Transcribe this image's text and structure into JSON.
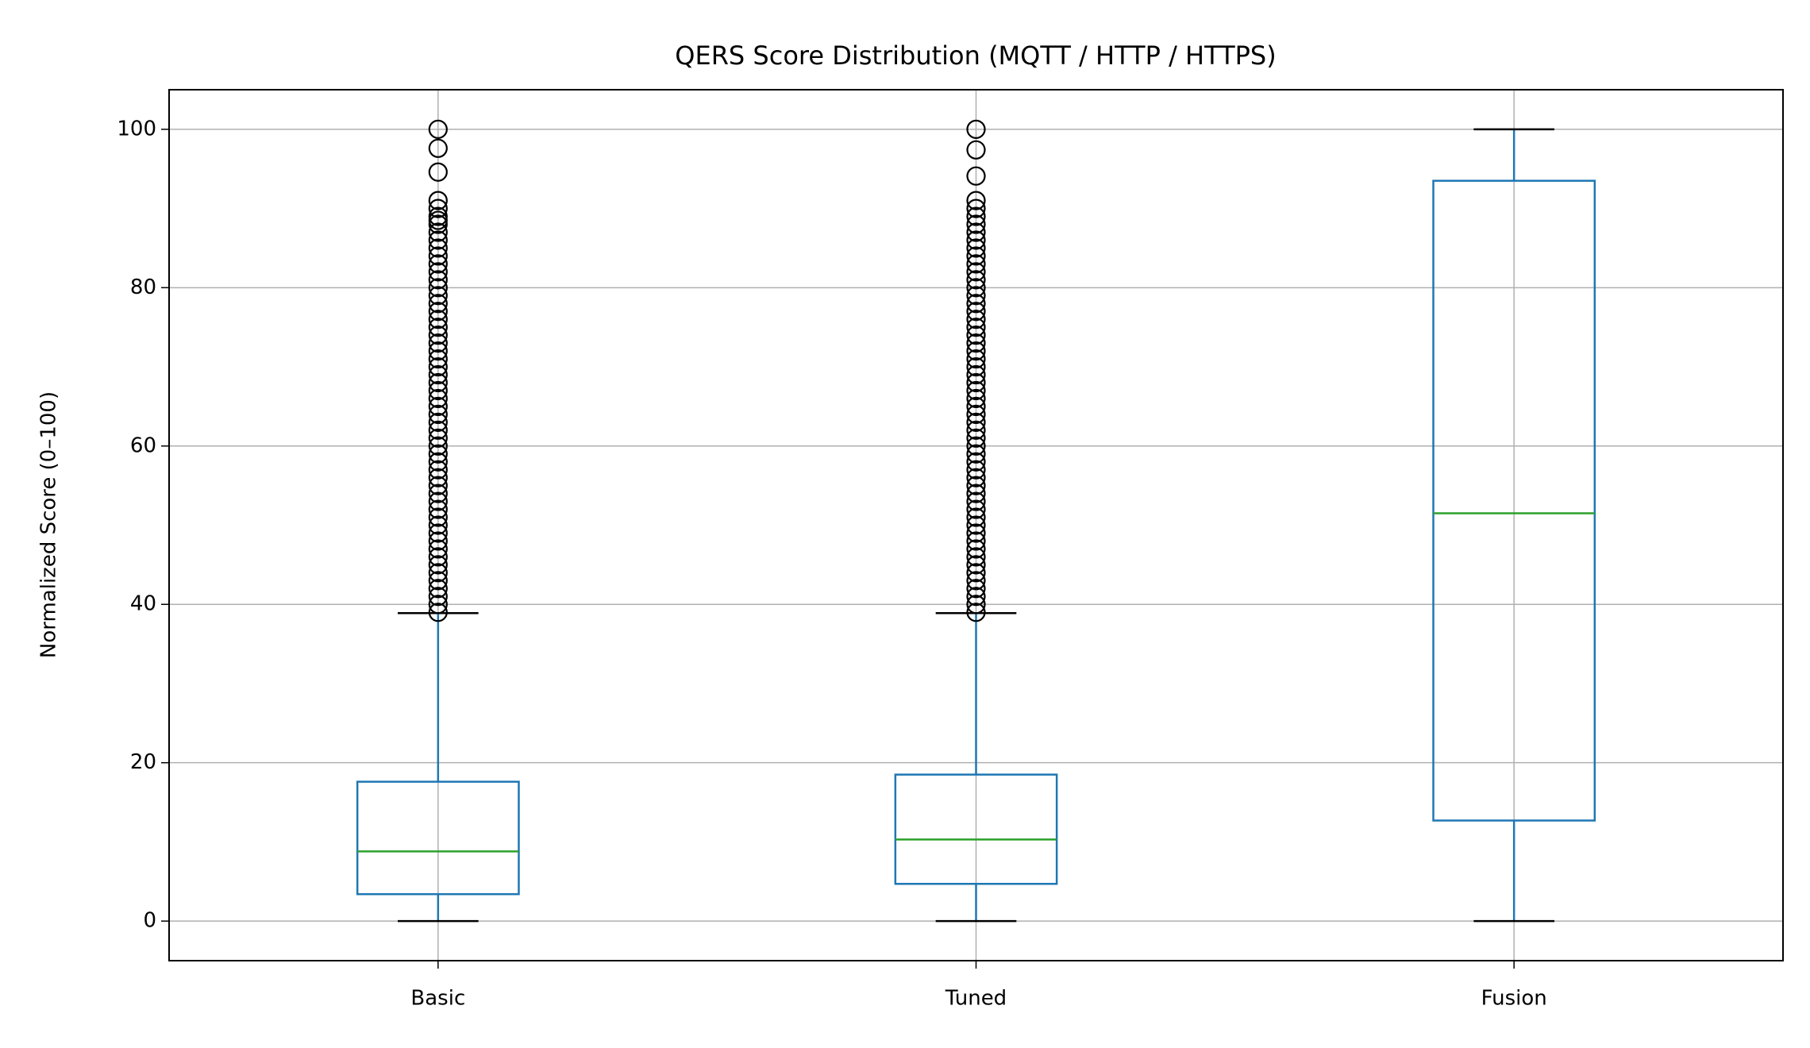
{
  "chart_data": {
    "type": "box",
    "title": "QERS Score Distribution (MQTT / HTTP / HTTPS)",
    "ylabel": "Normalized Score (0–100)",
    "categories": [
      "Basic",
      "Tuned",
      "Fusion"
    ],
    "boxes": [
      {
        "min": 0,
        "q1": 3.4,
        "median": 8.8,
        "q3": 17.6,
        "max": 38.9,
        "fliers": [
          39,
          40,
          41,
          42,
          43,
          44,
          45,
          46,
          47,
          48,
          49,
          50,
          51,
          52,
          53,
          54,
          55,
          56,
          57,
          58,
          59,
          60,
          61,
          62,
          63,
          64,
          65,
          66,
          67,
          68,
          69,
          70,
          71,
          72,
          73,
          74,
          75,
          76,
          77,
          78,
          79,
          80,
          81,
          82,
          83,
          84,
          85,
          86,
          87,
          88,
          88.5,
          89,
          90,
          91,
          94.6,
          97.6,
          100
        ]
      },
      {
        "min": 0,
        "q1": 4.7,
        "median": 10.3,
        "q3": 18.5,
        "max": 38.9,
        "fliers": [
          39,
          40,
          41,
          42,
          43,
          44,
          45,
          46,
          47,
          48,
          49,
          50,
          51,
          52,
          53,
          54,
          55,
          56,
          57,
          58,
          59,
          60,
          61,
          62,
          63,
          64,
          65,
          66,
          67,
          68,
          69,
          70,
          71,
          72,
          73,
          74,
          75,
          76,
          77,
          78,
          79,
          80,
          81,
          82,
          83,
          84,
          85,
          86,
          87,
          88,
          89,
          90,
          91,
          94.1,
          97.4,
          100
        ]
      },
      {
        "min": 0,
        "q1": 12.7,
        "median": 51.5,
        "q3": 93.5,
        "max": 100,
        "fliers": []
      }
    ],
    "box_color": "#1f77b4",
    "median_color": "#2ca02c",
    "cap_color": "#000000",
    "ylim": [
      -5,
      105
    ],
    "yticks": [
      0,
      20,
      40,
      60,
      80,
      100
    ],
    "grid": true
  }
}
